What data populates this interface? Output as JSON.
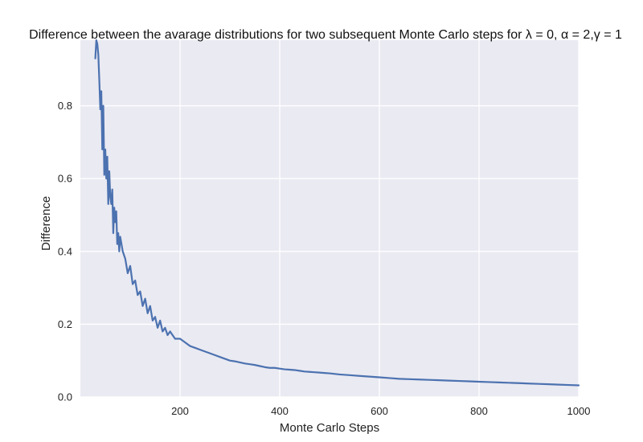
{
  "colors": {
    "plot_background": "#EAEAF2",
    "grid": "#FFFFFF",
    "series_line": "#4C72B0",
    "text": "#222222"
  },
  "chart_data": {
    "type": "line",
    "title": "Difference between the avarage distributions for two subsequent Monte Carlo steps for λ = 0, α = 2,γ = 1",
    "xlabel": "Monte Carlo Steps",
    "ylabel": "Difference",
    "xlim": [
      0,
      1000
    ],
    "ylim": [
      0.0,
      0.98
    ],
    "xticks": [
      200,
      400,
      600,
      800,
      1000
    ],
    "xtick_labels": [
      "200",
      "400",
      "600",
      "800",
      "1000"
    ],
    "yticks": [
      0.0,
      0.2,
      0.4,
      0.6,
      0.8
    ],
    "ytick_labels": [
      "0.0",
      "0.2",
      "0.4",
      "0.6",
      "0.8"
    ],
    "grid": true,
    "series": [
      {
        "x": [
          30,
          32,
          34,
          36,
          38,
          40,
          42,
          44,
          46,
          48,
          50,
          52,
          54,
          56,
          58,
          60,
          62,
          64,
          66,
          68,
          70,
          72,
          74,
          76,
          78,
          80,
          85,
          90,
          95,
          100,
          105,
          110,
          115,
          120,
          125,
          130,
          135,
          140,
          145,
          150,
          155,
          160,
          165,
          170,
          175,
          180,
          190,
          200,
          210,
          220,
          230,
          240,
          250,
          260,
          270,
          280,
          290,
          300,
          310,
          320,
          330,
          340,
          350,
          360,
          370,
          380,
          390,
          400,
          410,
          420,
          430,
          440,
          450,
          460,
          470,
          480,
          490,
          500,
          520,
          540,
          560,
          580,
          600,
          620,
          640,
          660,
          680,
          700,
          720,
          740,
          760,
          780,
          800,
          820,
          840,
          860,
          880,
          900,
          920,
          940,
          960,
          980,
          1000
        ],
        "values": [
          0.93,
          0.98,
          0.97,
          0.94,
          0.87,
          0.79,
          0.84,
          0.68,
          0.8,
          0.61,
          0.68,
          0.6,
          0.66,
          0.53,
          0.62,
          0.55,
          0.53,
          0.57,
          0.45,
          0.52,
          0.48,
          0.51,
          0.42,
          0.45,
          0.4,
          0.44,
          0.4,
          0.38,
          0.34,
          0.36,
          0.31,
          0.32,
          0.28,
          0.29,
          0.25,
          0.27,
          0.23,
          0.25,
          0.21,
          0.22,
          0.19,
          0.21,
          0.18,
          0.19,
          0.17,
          0.18,
          0.16,
          0.16,
          0.15,
          0.14,
          0.135,
          0.13,
          0.125,
          0.12,
          0.115,
          0.11,
          0.105,
          0.1,
          0.098,
          0.095,
          0.092,
          0.09,
          0.088,
          0.085,
          0.082,
          0.08,
          0.08,
          0.078,
          0.076,
          0.075,
          0.074,
          0.072,
          0.07,
          0.069,
          0.068,
          0.067,
          0.066,
          0.065,
          0.062,
          0.06,
          0.058,
          0.056,
          0.054,
          0.052,
          0.05,
          0.049,
          0.048,
          0.047,
          0.046,
          0.045,
          0.044,
          0.043,
          0.042,
          0.041,
          0.04,
          0.039,
          0.038,
          0.037,
          0.036,
          0.035,
          0.034,
          0.033,
          0.032
        ]
      }
    ]
  }
}
